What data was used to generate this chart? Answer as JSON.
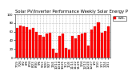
{
  "title": "Solar PV/Inverter Performance Weekly Solar Energy Production",
  "ylabel": "kWh",
  "legend_label": "kWh",
  "background_color": "#ffffff",
  "grid_color": "#888888",
  "bar_color": "#ff0000",
  "weeks": [
    "7/19",
    "7/26",
    "8/2",
    "8/9",
    "8/16",
    "8/23",
    "8/30",
    "9/6",
    "9/13",
    "9/20",
    "9/27",
    "10/4",
    "10/11",
    "10/18",
    "10/25",
    "11/1",
    "11/8",
    "11/15",
    "11/22",
    "11/29",
    "12/6",
    "12/13",
    "12/20",
    "12/27",
    "1/3",
    "1/10",
    "1/17",
    "1/24",
    "1/31"
  ],
  "values": [
    68,
    75,
    72,
    70,
    65,
    68,
    60,
    52,
    48,
    55,
    58,
    20,
    12,
    50,
    55,
    22,
    18,
    50,
    45,
    52,
    55,
    58,
    28,
    65,
    72,
    82,
    58,
    62,
    72
  ],
  "ylim": [
    0,
    100
  ],
  "yticks": [
    0,
    20,
    40,
    60,
    80,
    100
  ],
  "title_fontsize": 3.8,
  "axis_fontsize": 3.2,
  "tick_fontsize": 2.8,
  "legend_fontsize": 2.8
}
